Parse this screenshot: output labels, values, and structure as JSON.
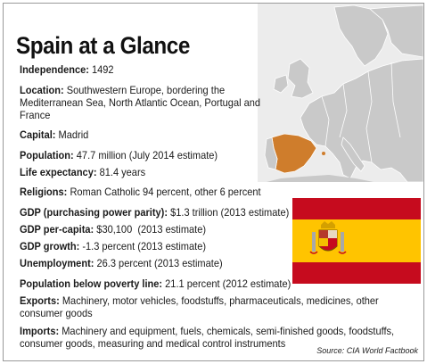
{
  "title": "Spain at a Glance",
  "facts": [
    {
      "label": "Independence:",
      "value": " 1492"
    },
    {
      "label": "Location:",
      "value": " Southwestern Europe, bordering the Mediterranean Sea, North Atlantic Ocean, Portugal and France"
    },
    {
      "label": "Capital:",
      "value": " Madrid"
    },
    {
      "label": "Population:",
      "value": " 47.7 million (July 2014 estimate)"
    },
    {
      "label": "Life expectancy:",
      "value": " 81.4 years"
    },
    {
      "label": "Religions:",
      "value": " Roman Catholic 94 percent, other 6 percent"
    },
    {
      "label": "GDP (purchasing power parity):",
      "value": " $1.3 trillion (2013 estimate)"
    },
    {
      "label": "GDP per-capita:",
      "value": " $30,100  (2013 estimate)"
    },
    {
      "label": "GDP growth:",
      "value": " -1.3 percent (2013 estimate)"
    },
    {
      "label": "Unemployment:",
      "value": " 26.3 percent (2013 estimate)"
    },
    {
      "label": "Population below poverty line:",
      "value": " 21.1 percent (2012 estimate)"
    },
    {
      "label": "Exports:",
      "value": " Machinery, motor vehicles, foodstuffs, pharmaceuticals, medicines, other consumer goods"
    },
    {
      "label": "Imports:",
      "value": " Machinery and equipment, fuels, chemicals, semi-finished goods, foodstuffs, consumer goods, measuring and medical control instruments"
    }
  ],
  "source": "Source: CIA World Factbook",
  "colors": {
    "spain_highlight": "#cf7d2c",
    "land": "#c8c8c8",
    "sea": "#ededed",
    "flag_red": "#c60b1e",
    "flag_yellow": "#ffc400"
  }
}
